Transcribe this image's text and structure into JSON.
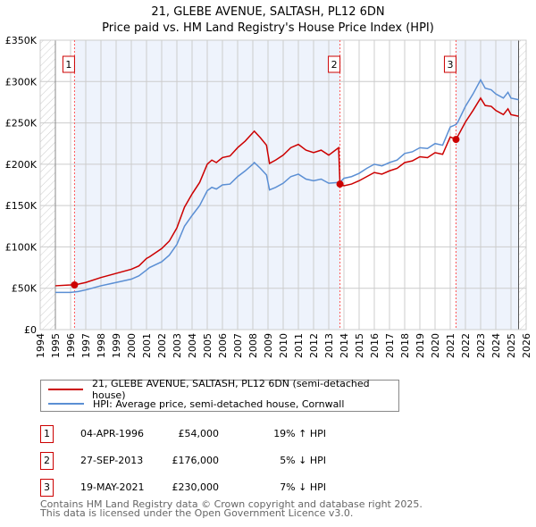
{
  "chart_data": {
    "type": "line",
    "title": "21, GLEBE AVENUE, SALTASH, PL12 6DN",
    "subtitle": "Price paid vs. HM Land Registry's House Price Index (HPI)",
    "xlim": [
      1994,
      2026
    ],
    "ylim": [
      0,
      350000
    ],
    "yticks": [
      0,
      50000,
      100000,
      150000,
      200000,
      250000,
      300000,
      350000
    ],
    "ytick_labels": [
      "£0",
      "£50K",
      "£100K",
      "£150K",
      "£200K",
      "£250K",
      "£300K",
      "£350K"
    ],
    "xticks": [
      1994,
      1995,
      1996,
      1997,
      1998,
      1999,
      2000,
      2001,
      2002,
      2003,
      2004,
      2005,
      2006,
      2007,
      2008,
      2009,
      2010,
      2011,
      2012,
      2013,
      2014,
      2015,
      2016,
      2017,
      2018,
      2019,
      2020,
      2021,
      2022,
      2023,
      2024,
      2025,
      2026
    ],
    "grid": true,
    "x": [
      1995,
      1996,
      1996.5,
      1997,
      1998,
      1999,
      2000,
      2000.5,
      2001,
      2001.2,
      2002,
      2002.5,
      2003,
      2003.5,
      2004,
      2004.5,
      2005,
      2005.3,
      2005.6,
      2006,
      2006.5,
      2007,
      2007.5,
      2008,
      2008.1,
      2008.5,
      2008.9,
      2009.1,
      2009.5,
      2010,
      2010.5,
      2011,
      2011.5,
      2012,
      2012.5,
      2013,
      2013.65,
      2013.74,
      2014,
      2014.5,
      2015,
      2015.5,
      2016,
      2016.5,
      2017,
      2017.5,
      2018,
      2018.5,
      2019,
      2019.5,
      2020,
      2020.5,
      2021,
      2021.38,
      2021.5,
      2022,
      2022.5,
      2023,
      2023.3,
      2023.7,
      2024,
      2024.5,
      2024.8,
      2025,
      2025.5
    ],
    "series": [
      {
        "name": "21, GLEBE AVENUE, SALTASH, PL12 6DN (semi-detached house)",
        "color": "#cc0000",
        "values": [
          53,
          54,
          55,
          57,
          63,
          68,
          73,
          77,
          86,
          88,
          98,
          107,
          123,
          148,
          164,
          178,
          200,
          205,
          202,
          208,
          210,
          220,
          228,
          238,
          240,
          232,
          223,
          201,
          205,
          211,
          220,
          224,
          217,
          214,
          217,
          211,
          220,
          176,
          174,
          176,
          180,
          185,
          190,
          188,
          192,
          195,
          202,
          204,
          209,
          208,
          214,
          212,
          233,
          230,
          234,
          251,
          265,
          280,
          271,
          270,
          265,
          260,
          267,
          260,
          258
        ]
      },
      {
        "name": "HPI: Average price, semi-detached house, Cornwall",
        "color": "#5b8fd4",
        "values": [
          45,
          45,
          46,
          48,
          53,
          57,
          61,
          65,
          72,
          75,
          82,
          90,
          103,
          125,
          138,
          150,
          168,
          172,
          170,
          175,
          176,
          185,
          192,
          200,
          202,
          195,
          187,
          169,
          172,
          177,
          185,
          188,
          182,
          180,
          182,
          177,
          178,
          178,
          183,
          185,
          189,
          195,
          200,
          198,
          202,
          205,
          213,
          215,
          220,
          219,
          225,
          223,
          245,
          248,
          251,
          270,
          285,
          302,
          292,
          290,
          285,
          280,
          287,
          280,
          278
        ]
      }
    ],
    "value_unit": "thousand GBP",
    "data_end": 2025.5,
    "sales": [
      {
        "id": "1",
        "x": 1996.26,
        "value": 54,
        "date": "04-APR-1996",
        "price": "£54,000",
        "hpi": "19% ↑ HPI"
      },
      {
        "id": "2",
        "x": 2013.74,
        "value": 176,
        "date": "27-SEP-2013",
        "price": "£176,000",
        "hpi": "5% ↓ HPI"
      },
      {
        "id": "3",
        "x": 2021.38,
        "value": 230,
        "date": "19-MAY-2021",
        "price": "£230,000",
        "hpi": "7% ↓ HPI"
      }
    ]
  },
  "footer": {
    "line1": "Contains HM Land Registry data © Crown copyright and database right 2025.",
    "line2": "This data is licensed under the Open Government Licence v3.0."
  }
}
